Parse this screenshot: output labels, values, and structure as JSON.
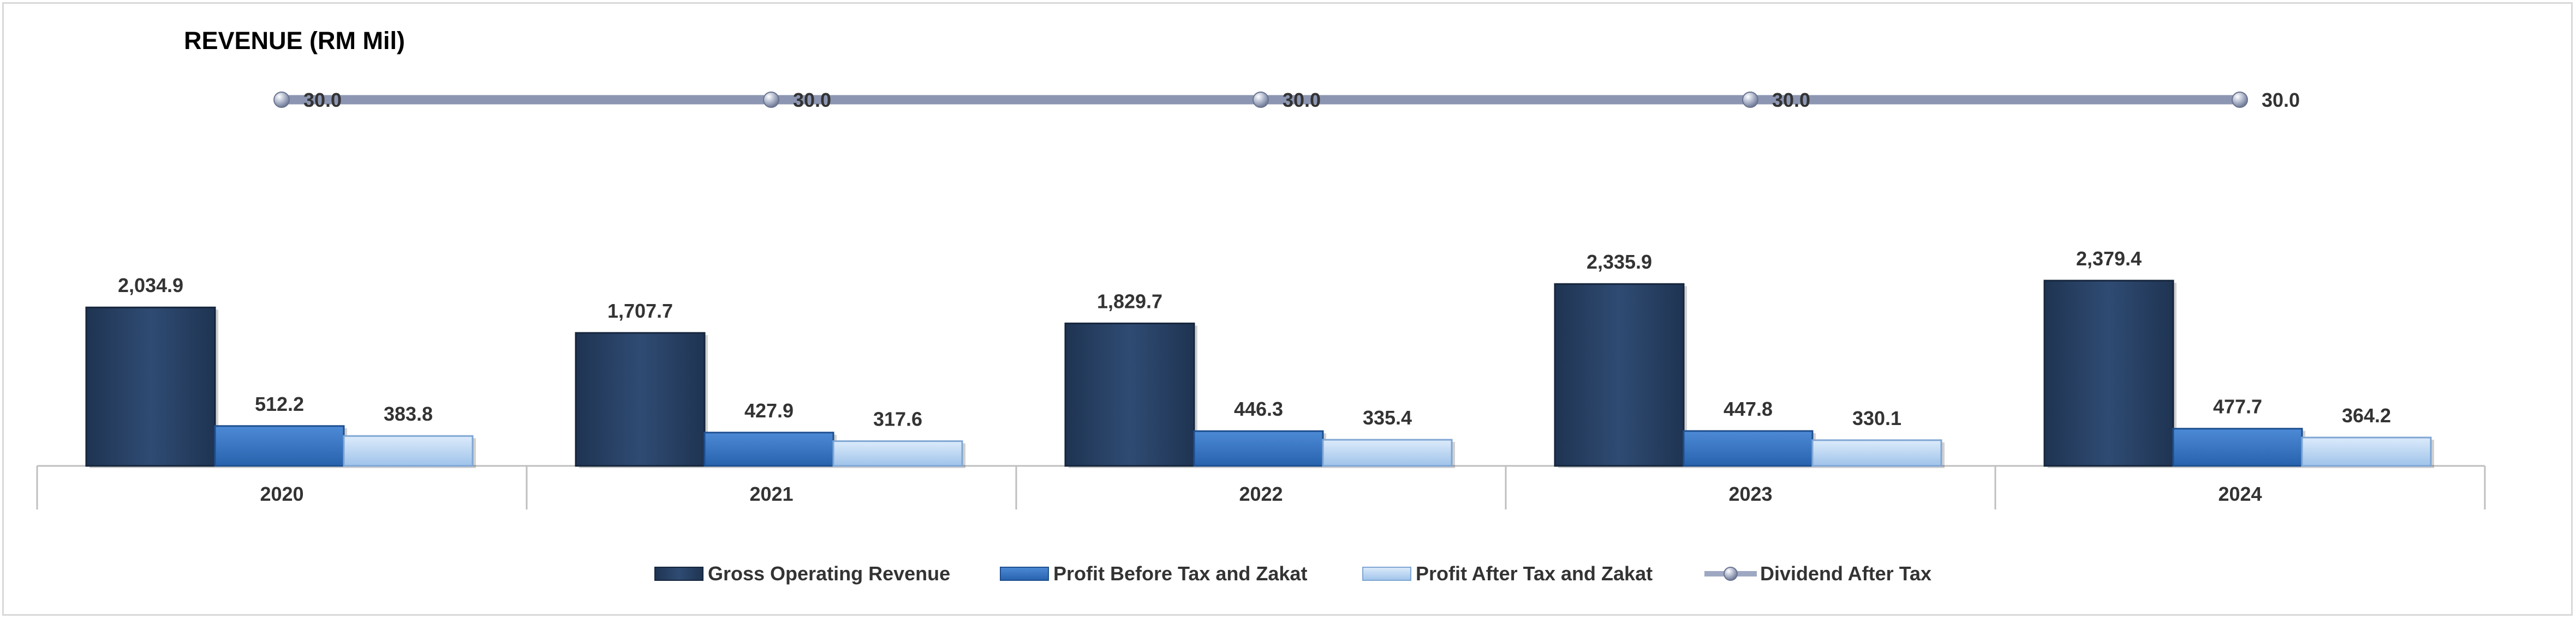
{
  "chart_data": {
    "type": "bar",
    "title": "REVENUE (RM Mil)",
    "categories": [
      "2020",
      "2021",
      "2022",
      "2023",
      "2024"
    ],
    "series": [
      {
        "name": "Gross Operating Revenue",
        "kind": "bar",
        "color": "#2a4468",
        "values": [
          2034.9,
          1707.7,
          1829.7,
          2335.9,
          2379.4
        ],
        "labels": [
          "2,034.9",
          "1,707.7",
          "1,829.7",
          "2,335.9",
          "2,379.4"
        ]
      },
      {
        "name": "Profit Before Tax and Zakat",
        "kind": "bar",
        "color": "#2e6fc0",
        "values": [
          512.2,
          427.9,
          446.3,
          447.8,
          477.7
        ],
        "labels": [
          "512.2",
          "427.9",
          "446.3",
          "447.8",
          "477.7"
        ]
      },
      {
        "name": "Profit After Tax and Zakat",
        "kind": "bar",
        "color": "#a9cbee",
        "values": [
          383.8,
          317.6,
          335.4,
          330.1,
          364.2
        ],
        "labels": [
          "383.8",
          "317.6",
          "335.4",
          "330.1",
          "364.2"
        ]
      },
      {
        "name": "Dividend After Tax",
        "kind": "line",
        "color": "#9ea8c2",
        "values": [
          30.0,
          30.0,
          30.0,
          30.0,
          30.0
        ],
        "labels": [
          "30.0",
          "30.0",
          "30.0",
          "30.0",
          "30.0"
        ]
      }
    ],
    "grid": false,
    "legend_position": "bottom"
  }
}
